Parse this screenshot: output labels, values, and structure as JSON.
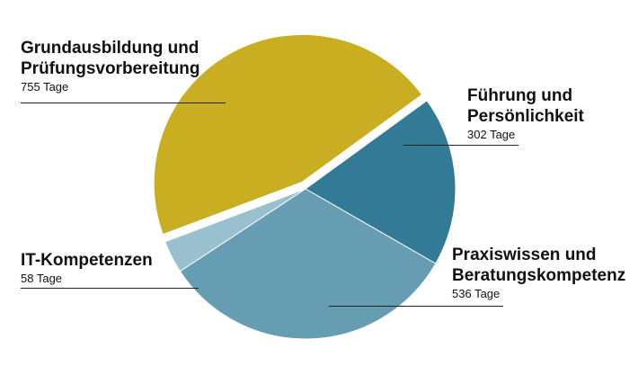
{
  "chart_data": {
    "type": "pie",
    "unit": "Tage",
    "slices": [
      {
        "label_lines": [
          "Führung und",
          "Persönlichkeit"
        ],
        "value": 302,
        "value_label": "302 Tage",
        "color": "#327a96"
      },
      {
        "label_lines": [
          "Praxiswissen und",
          "Beratungskompetenz"
        ],
        "value": 536,
        "value_label": "536 Tage",
        "color": "#679db3"
      },
      {
        "label_lines": [
          "IT-Kompetenzen"
        ],
        "value": 58,
        "value_label": "58 Tage",
        "color": "#98c0cf"
      },
      {
        "label_lines": [
          "Grundausbildung und",
          "Prüfungsvorbereitung"
        ],
        "value": 755,
        "value_label": "755 Tage",
        "color": "#c9ae22",
        "exploded": true
      }
    ]
  }
}
